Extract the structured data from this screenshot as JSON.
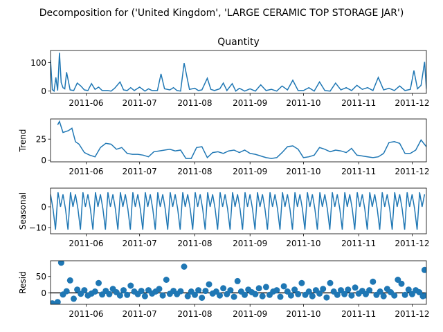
{
  "figure": {
    "suptitle": "Decomposition for ('United Kingdom', 'LARGE CERAMIC TOP STORAGE JAR')"
  },
  "colors": {
    "line": "#1f77b4",
    "marker": "#1f77b4",
    "zero_line": "#000000",
    "axes": "#000000"
  },
  "chart_data": [
    {
      "type": "line",
      "title": "Quantity",
      "ylabel": "",
      "ylim": [
        -8,
        142
      ],
      "yticks": [
        0,
        100
      ],
      "x_range": [
        "2011-05-12",
        "2011-12-09"
      ],
      "xticks": [
        "2011-06",
        "2011-07",
        "2011-08",
        "2011-09",
        "2011-10",
        "2011-11",
        "2011-12"
      ],
      "series": [
        {
          "x": [
            "2011-05-12",
            "2011-05-13",
            "2011-05-14",
            "2011-05-15",
            "2011-05-16",
            "2011-05-17",
            "2011-05-18",
            "2011-05-19",
            "2011-05-20",
            "2011-05-21",
            "2011-05-23",
            "2011-05-25",
            "2011-05-27",
            "2011-05-29",
            "2011-05-31",
            "2011-06-02",
            "2011-06-04",
            "2011-06-06",
            "2011-06-08",
            "2011-06-10",
            "2011-06-13",
            "2011-06-15",
            "2011-06-17",
            "2011-06-20",
            "2011-06-22",
            "2011-06-24",
            "2011-06-26",
            "2011-06-28",
            "2011-07-01",
            "2011-07-04",
            "2011-07-06",
            "2011-07-08",
            "2011-07-11",
            "2011-07-13",
            "2011-07-15",
            "2011-07-18",
            "2011-07-20",
            "2011-07-22",
            "2011-07-24",
            "2011-07-26",
            "2011-07-29",
            "2011-08-01",
            "2011-08-03",
            "2011-08-05",
            "2011-08-08",
            "2011-08-10",
            "2011-08-12",
            "2011-08-15",
            "2011-08-17",
            "2011-08-19",
            "2011-08-22",
            "2011-08-24",
            "2011-08-26",
            "2011-08-29",
            "2011-09-01",
            "2011-09-04",
            "2011-09-07",
            "2011-09-10",
            "2011-09-13",
            "2011-09-16",
            "2011-09-19",
            "2011-09-22",
            "2011-09-25",
            "2011-09-28",
            "2011-10-01",
            "2011-10-04",
            "2011-10-07",
            "2011-10-10",
            "2011-10-13",
            "2011-10-16",
            "2011-10-19",
            "2011-10-22",
            "2011-10-25",
            "2011-10-28",
            "2011-10-31",
            "2011-11-03",
            "2011-11-06",
            "2011-11-09",
            "2011-11-12",
            "2011-11-15",
            "2011-11-18",
            "2011-11-21",
            "2011-11-24",
            "2011-11-27",
            "2011-11-30",
            "2011-12-02",
            "2011-12-04",
            "2011-12-06",
            "2011-12-08",
            "2011-12-09"
          ],
          "y": [
            108,
            5,
            0,
            48,
            2,
            134,
            30,
            12,
            8,
            66,
            4,
            2,
            28,
            18,
            4,
            2,
            26,
            6,
            14,
            2,
            2,
            0,
            10,
            32,
            4,
            2,
            12,
            2,
            14,
            0,
            8,
            2,
            2,
            60,
            8,
            4,
            12,
            2,
            0,
            98,
            6,
            10,
            2,
            4,
            45,
            6,
            2,
            8,
            28,
            2,
            26,
            0,
            10,
            0,
            8,
            0,
            22,
            2,
            6,
            0,
            18,
            4,
            38,
            2,
            2,
            12,
            0,
            32,
            2,
            0,
            28,
            4,
            12,
            2,
            20,
            6,
            12,
            2,
            48,
            4,
            10,
            2,
            18,
            2,
            6,
            72,
            8,
            20,
            102,
            8
          ]
        }
      ]
    },
    {
      "type": "line",
      "title": "",
      "ylabel": "Trend",
      "ylim": [
        -2,
        49
      ],
      "yticks": [
        0,
        25
      ],
      "series": [
        {
          "x": [
            "2011-05-16",
            "2011-05-17",
            "2011-05-19",
            "2011-05-22",
            "2011-05-24",
            "2011-05-26",
            "2011-05-28",
            "2011-05-31",
            "2011-06-03",
            "2011-06-06",
            "2011-06-09",
            "2011-06-12",
            "2011-06-15",
            "2011-06-18",
            "2011-06-21",
            "2011-06-24",
            "2011-06-27",
            "2011-06-30",
            "2011-07-03",
            "2011-07-06",
            "2011-07-09",
            "2011-07-12",
            "2011-07-15",
            "2011-07-18",
            "2011-07-21",
            "2011-07-24",
            "2011-07-27",
            "2011-07-30",
            "2011-08-02",
            "2011-08-05",
            "2011-08-08",
            "2011-08-11",
            "2011-08-14",
            "2011-08-17",
            "2011-08-20",
            "2011-08-23",
            "2011-08-26",
            "2011-08-29",
            "2011-09-01",
            "2011-09-04",
            "2011-09-07",
            "2011-09-10",
            "2011-09-13",
            "2011-09-16",
            "2011-09-19",
            "2011-09-22",
            "2011-09-25",
            "2011-09-28",
            "2011-10-01",
            "2011-10-04",
            "2011-10-07",
            "2011-10-10",
            "2011-10-13",
            "2011-10-16",
            "2011-10-19",
            "2011-10-22",
            "2011-10-25",
            "2011-10-28",
            "2011-10-31",
            "2011-11-03",
            "2011-11-06",
            "2011-11-09",
            "2011-11-12",
            "2011-11-15",
            "2011-11-18",
            "2011-11-21",
            "2011-11-24",
            "2011-11-27",
            "2011-11-30",
            "2011-12-03",
            "2011-12-06",
            "2011-12-09"
          ],
          "y": [
            42,
            46,
            33,
            35,
            38,
            22,
            19,
            9,
            6,
            4,
            15,
            20,
            19,
            13,
            15,
            8,
            7,
            7,
            6,
            4,
            10,
            11,
            12,
            13,
            11,
            12,
            2,
            2,
            15,
            16,
            3,
            9,
            10,
            8,
            11,
            12,
            9,
            12,
            8,
            7,
            5,
            3,
            2,
            3,
            9,
            16,
            17,
            13,
            3,
            4,
            6,
            15,
            13,
            10,
            12,
            11,
            9,
            14,
            6,
            5,
            4,
            3,
            4,
            8,
            21,
            22,
            20,
            8,
            8,
            12,
            24,
            16
          ]
        }
      ]
    },
    {
      "type": "line",
      "title": "",
      "ylabel": "Seasonal",
      "ylim": [
        -13,
        9
      ],
      "yticks": [
        -10,
        0
      ],
      "period_points": 5,
      "pattern": [
        6,
        -1,
        -11,
        7,
        0
      ],
      "x_range": [
        "2011-05-12",
        "2011-12-09"
      ]
    },
    {
      "type": "scatter",
      "title": "",
      "ylabel": "Resid",
      "ylim": [
        -35,
        98
      ],
      "yticks": [
        0,
        50
      ],
      "zero_line": true,
      "series": [
        {
          "x": [
            "2011-05-13",
            "2011-05-16",
            "2011-05-18",
            "2011-05-19",
            "2011-05-21",
            "2011-05-23",
            "2011-05-25",
            "2011-05-27",
            "2011-05-29",
            "2011-05-31",
            "2011-06-02",
            "2011-06-04",
            "2011-06-06",
            "2011-06-08",
            "2011-06-10",
            "2011-06-12",
            "2011-06-14",
            "2011-06-16",
            "2011-06-18",
            "2011-06-20",
            "2011-06-22",
            "2011-06-24",
            "2011-06-26",
            "2011-06-28",
            "2011-06-30",
            "2011-07-02",
            "2011-07-04",
            "2011-07-06",
            "2011-07-08",
            "2011-07-10",
            "2011-07-12",
            "2011-07-14",
            "2011-07-16",
            "2011-07-18",
            "2011-07-20",
            "2011-07-22",
            "2011-07-24",
            "2011-07-26",
            "2011-07-28",
            "2011-07-30",
            "2011-08-01",
            "2011-08-03",
            "2011-08-05",
            "2011-08-07",
            "2011-08-09",
            "2011-08-11",
            "2011-08-13",
            "2011-08-15",
            "2011-08-17",
            "2011-08-19",
            "2011-08-21",
            "2011-08-23",
            "2011-08-25",
            "2011-08-27",
            "2011-08-29",
            "2011-08-31",
            "2011-09-02",
            "2011-09-04",
            "2011-09-06",
            "2011-09-08",
            "2011-09-10",
            "2011-09-12",
            "2011-09-14",
            "2011-09-16",
            "2011-09-18",
            "2011-09-20",
            "2011-09-22",
            "2011-09-24",
            "2011-09-26",
            "2011-09-28",
            "2011-09-30",
            "2011-10-02",
            "2011-10-04",
            "2011-10-06",
            "2011-10-08",
            "2011-10-10",
            "2011-10-12",
            "2011-10-14",
            "2011-10-16",
            "2011-10-18",
            "2011-10-20",
            "2011-10-22",
            "2011-10-24",
            "2011-10-26",
            "2011-10-28",
            "2011-10-30",
            "2011-11-01",
            "2011-11-03",
            "2011-11-05",
            "2011-11-07",
            "2011-11-09",
            "2011-11-11",
            "2011-11-13",
            "2011-11-15",
            "2011-11-17",
            "2011-11-19",
            "2011-11-21",
            "2011-11-23",
            "2011-11-25",
            "2011-11-27",
            "2011-11-29",
            "2011-12-01",
            "2011-12-03",
            "2011-12-05",
            "2011-12-07",
            "2011-12-08",
            "2011-12-09"
          ],
          "y": [
            -32,
            -28,
            92,
            -5,
            5,
            38,
            -18,
            10,
            -3,
            8,
            -8,
            -2,
            4,
            30,
            -5,
            6,
            -4,
            12,
            2,
            -8,
            8,
            -6,
            22,
            4,
            -4,
            6,
            -10,
            8,
            -2,
            4,
            12,
            -8,
            40,
            -3,
            6,
            -4,
            5,
            80,
            -10,
            4,
            -6,
            8,
            -15,
            6,
            26,
            -2,
            4,
            -8,
            14,
            -4,
            8,
            -12,
            36,
            4,
            -6,
            10,
            2,
            -4,
            14,
            -10,
            18,
            -6,
            4,
            8,
            -12,
            20,
            4,
            -8,
            10,
            -4,
            30,
            -6,
            4,
            -10,
            8,
            -2,
            12,
            -14,
            30,
            4,
            -6,
            8,
            -4,
            10,
            -8,
            16,
            -2,
            6,
            -4,
            8,
            34,
            -6,
            4,
            -10,
            12,
            2,
            -8,
            40,
            28,
            -6,
            10,
            -4,
            8,
            2,
            -10,
            70,
            -8
          ]
        }
      ]
    }
  ]
}
